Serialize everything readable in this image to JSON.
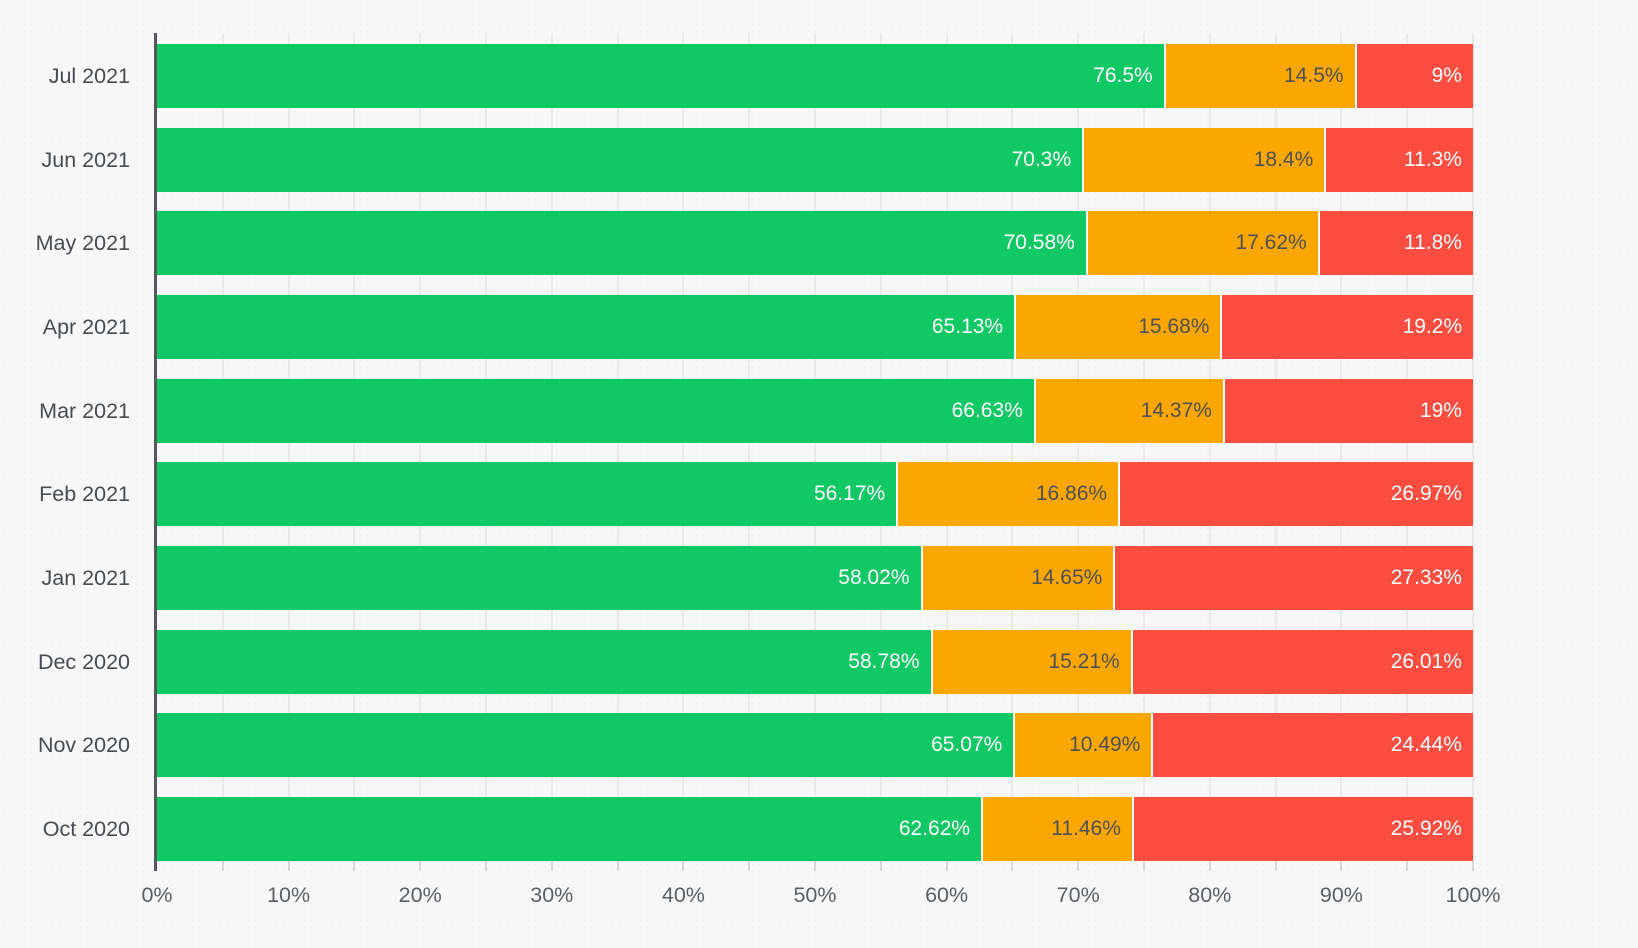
{
  "chart_data": {
    "type": "bar",
    "orientation": "horizontal",
    "stacked": true,
    "title": "",
    "xlabel": "",
    "ylabel": "",
    "legend": false,
    "grid": true,
    "x_axis": {
      "range": [
        0,
        100
      ],
      "unit": "%",
      "tick_labels": [
        "0%",
        "10%",
        "20%",
        "30%",
        "40%",
        "50%",
        "60%",
        "70%",
        "80%",
        "90%",
        "100%"
      ],
      "minor_grid_step_percent": 5
    },
    "categories": [
      "Jul 2021",
      "Jun 2021",
      "May 2021",
      "Apr 2021",
      "Mar 2021",
      "Feb 2021",
      "Jan 2021",
      "Dec 2020",
      "Nov 2020",
      "Oct 2020"
    ],
    "series": [
      {
        "name": "green",
        "color": "#10c864",
        "label_color": "#ffffff",
        "values": [
          76.5,
          70.3,
          70.58,
          65.13,
          66.63,
          56.17,
          58.02,
          58.78,
          65.07,
          62.62
        ],
        "labels": [
          "76.5%",
          "70.3%",
          "70.58%",
          "65.13%",
          "66.63%",
          "56.17%",
          "58.02%",
          "58.78%",
          "65.07%",
          "62.62%"
        ]
      },
      {
        "name": "orange",
        "color": "#fca600",
        "label_color": "#4d5156",
        "values": [
          14.5,
          18.4,
          17.62,
          15.68,
          14.37,
          16.86,
          14.65,
          15.21,
          10.49,
          11.46
        ],
        "labels": [
          "14.5%",
          "18.4%",
          "17.62%",
          "15.68%",
          "14.37%",
          "16.86%",
          "14.65%",
          "15.21%",
          "10.49%",
          "11.46%"
        ]
      },
      {
        "name": "red",
        "color": "#fc4d40",
        "label_color": "#ffffff",
        "values": [
          9,
          11.3,
          11.8,
          19.2,
          19,
          26.97,
          27.33,
          26.01,
          24.44,
          25.92
        ],
        "labels": [
          "9%",
          "11.3%",
          "11.8%",
          "19.2%",
          "19%",
          "26.97%",
          "27.33%",
          "26.01%",
          "24.44%",
          "25.92%"
        ]
      }
    ]
  },
  "colors": {
    "background": "#f8f8f8",
    "axis_line": "#54585d",
    "gridline": "#eaeaea",
    "tick": "#d8d8d8",
    "category_label": "#474c51",
    "x_tick_label": "#5a5f64"
  }
}
